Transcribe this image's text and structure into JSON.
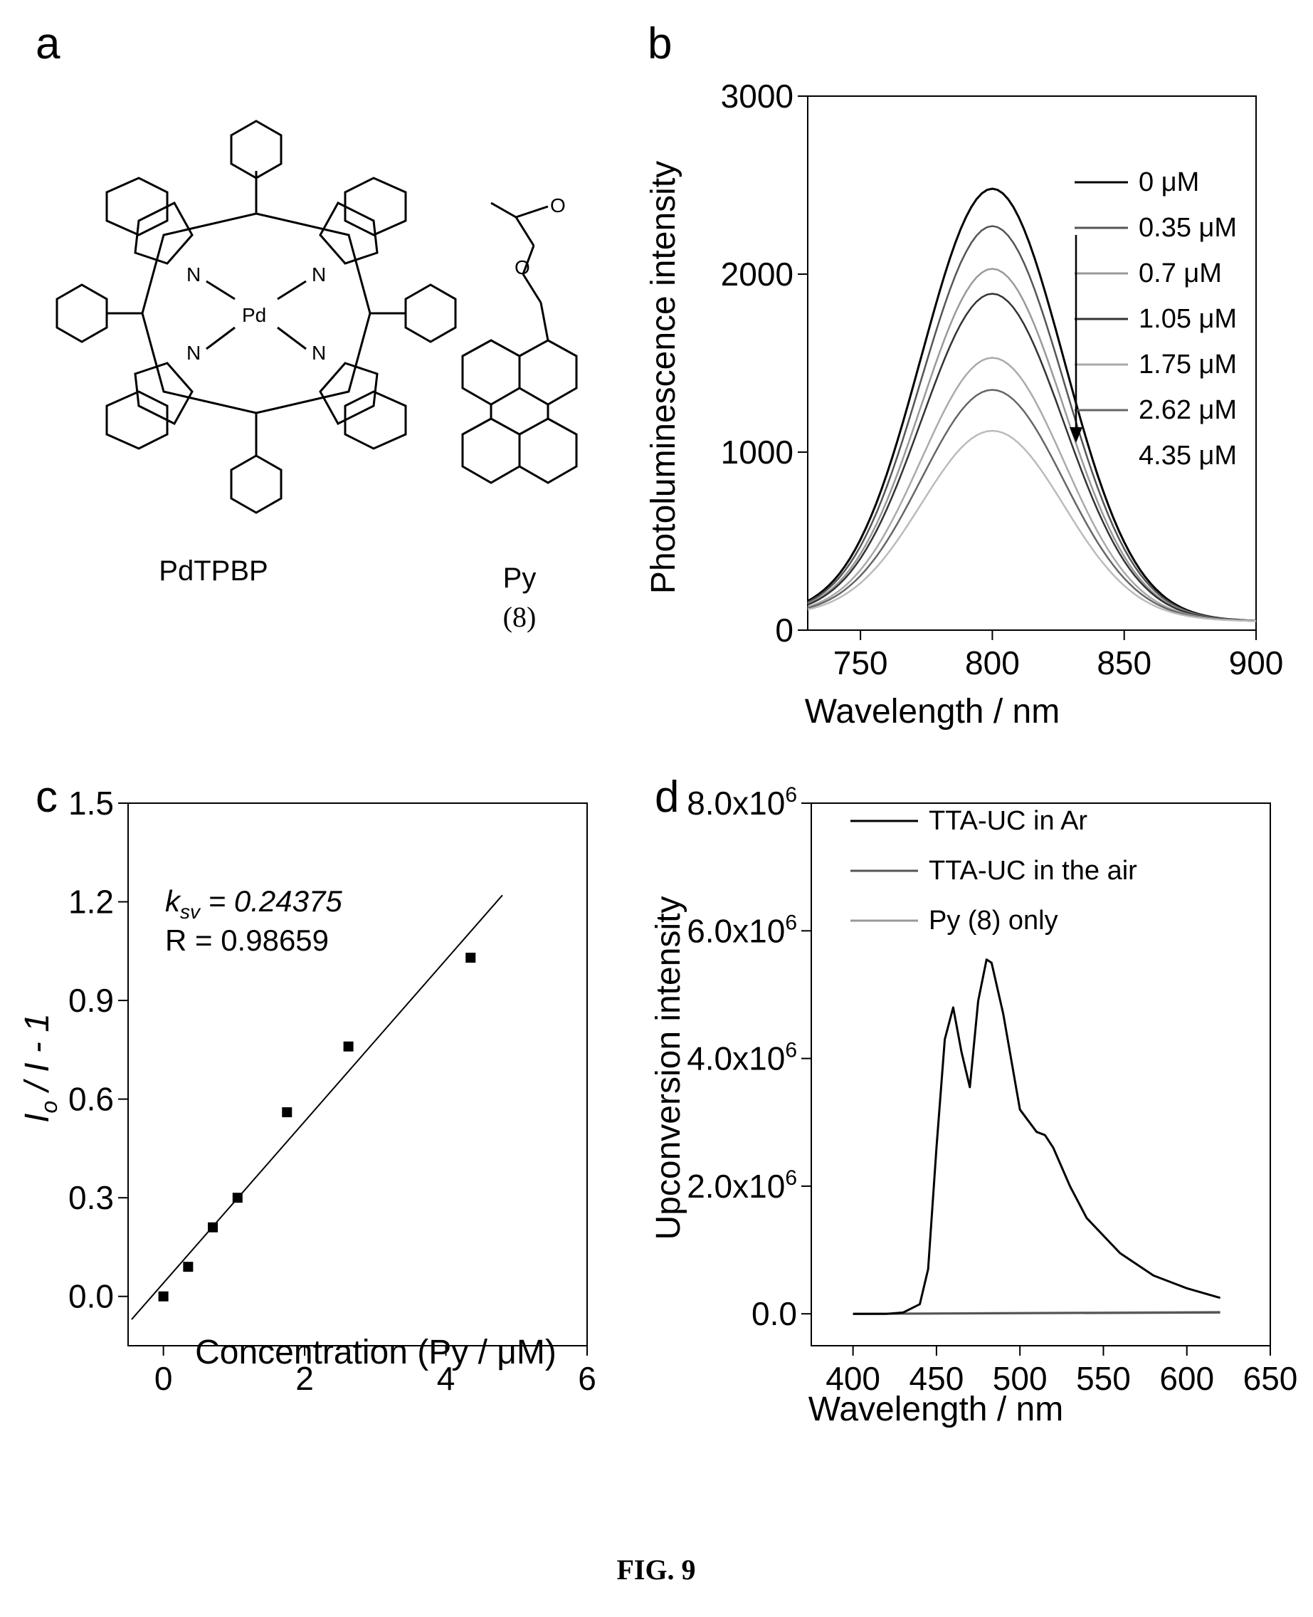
{
  "figure_caption": "FIG. 9",
  "panel_a": {
    "letter": "a",
    "compounds": [
      {
        "name": "PdTPBP",
        "number": ""
      },
      {
        "name": "Py",
        "number": "(8)"
      }
    ],
    "atom_labels": {
      "metal": "Pd",
      "nitrogen": "N",
      "oxygen": "O"
    }
  },
  "chart_data": [
    {
      "panel": "b",
      "type": "line",
      "xlabel": "Wavelength / nm",
      "ylabel": "Photoluminescence intensity",
      "xlim": [
        730,
        900
      ],
      "ylim": [
        0,
        3000
      ],
      "xticks": [
        750,
        800,
        850,
        900
      ],
      "yticks": [
        0,
        1000,
        2000,
        3000
      ],
      "grid": false,
      "legend_position": "top-right",
      "legend_note": "arrow indicates decreasing intensity with increasing concentration",
      "peak_wavelength": 800,
      "series": [
        {
          "name": "0 μM",
          "peak": 2480,
          "color": "#000000"
        },
        {
          "name": "0.35 μM",
          "peak": 2270,
          "color": "#555555"
        },
        {
          "name": "0.7 μM",
          "peak": 2030,
          "color": "#999999"
        },
        {
          "name": "1.05 μM",
          "peak": 1890,
          "color": "#333333"
        },
        {
          "name": "1.75 μM",
          "peak": 1530,
          "color": "#aaaaaa"
        },
        {
          "name": "2.62 μM",
          "peak": 1350,
          "color": "#666666"
        },
        {
          "name": "4.35 μM",
          "peak": 1120,
          "color": "#bbbbbb"
        }
      ],
      "baseline_at_730": 80,
      "baseline_at_900": 50
    },
    {
      "panel": "c",
      "type": "scatter",
      "xlabel": "Concentration (Py / μM)",
      "ylabel": "Io / I - 1",
      "ylabel_parts": {
        "main": "I",
        "sub": "o",
        "rest": " / I - 1"
      },
      "xlim": [
        -0.5,
        6
      ],
      "ylim": [
        -0.15,
        1.5
      ],
      "xticks": [
        0,
        2,
        4,
        6
      ],
      "yticks": [
        "0.0",
        "0.3",
        "0.6",
        "0.9",
        "1.2",
        "1.5"
      ],
      "grid": false,
      "points": [
        {
          "x": 0,
          "y": 0.0
        },
        {
          "x": 0.35,
          "y": 0.09
        },
        {
          "x": 0.7,
          "y": 0.21
        },
        {
          "x": 1.05,
          "y": 0.3
        },
        {
          "x": 1.75,
          "y": 0.56
        },
        {
          "x": 2.62,
          "y": 0.76
        },
        {
          "x": 4.35,
          "y": 1.03
        }
      ],
      "fit_line": {
        "x": [
          -0.45,
          4.8
        ],
        "y": [
          -0.07,
          1.22
        ]
      },
      "annotation": {
        "k_label": "k",
        "k_sub": "sv",
        "k_value": " = 0.24375",
        "r_text": "R = 0.98659"
      }
    },
    {
      "panel": "d",
      "type": "line",
      "xlabel": "Wavelength / nm",
      "ylabel": "Upconversion intensity",
      "xlim": [
        375,
        650
      ],
      "ylim": [
        -0.5,
        8
      ],
      "ylim_units": "x10^6",
      "xticks": [
        400,
        450,
        500,
        550,
        600,
        650
      ],
      "yticks": [
        {
          "value": 0,
          "label": "0.0",
          "exp": ""
        },
        {
          "value": 2,
          "label": "2.0x10",
          "exp": "6"
        },
        {
          "value": 4,
          "label": "4.0x10",
          "exp": "6"
        },
        {
          "value": 6,
          "label": "6.0x10",
          "exp": "6"
        },
        {
          "value": 8,
          "label": "8.0x10",
          "exp": "6"
        }
      ],
      "grid": false,
      "legend_position": "top-left",
      "series": [
        {
          "name": "TTA-UC in Ar",
          "color": "#000000",
          "x": [
            400,
            420,
            430,
            440,
            445,
            450,
            455,
            460,
            465,
            470,
            475,
            480,
            483,
            490,
            500,
            510,
            515,
            520,
            530,
            540,
            560,
            580,
            600,
            620
          ],
          "y": [
            0,
            0,
            0.02,
            0.15,
            0.7,
            2.6,
            4.3,
            4.8,
            4.1,
            3.55,
            4.9,
            5.55,
            5.5,
            4.7,
            3.2,
            2.85,
            2.8,
            2.6,
            2.0,
            1.5,
            0.95,
            0.6,
            0.4,
            0.25
          ]
        },
        {
          "name": "TTA-UC in the air",
          "color": "#555555",
          "x": [
            400,
            620
          ],
          "y": [
            0,
            0.02
          ]
        },
        {
          "name": "Py (8) only",
          "color": "#999999",
          "x": [
            400,
            620
          ],
          "y": [
            0,
            0.03
          ]
        }
      ]
    }
  ]
}
